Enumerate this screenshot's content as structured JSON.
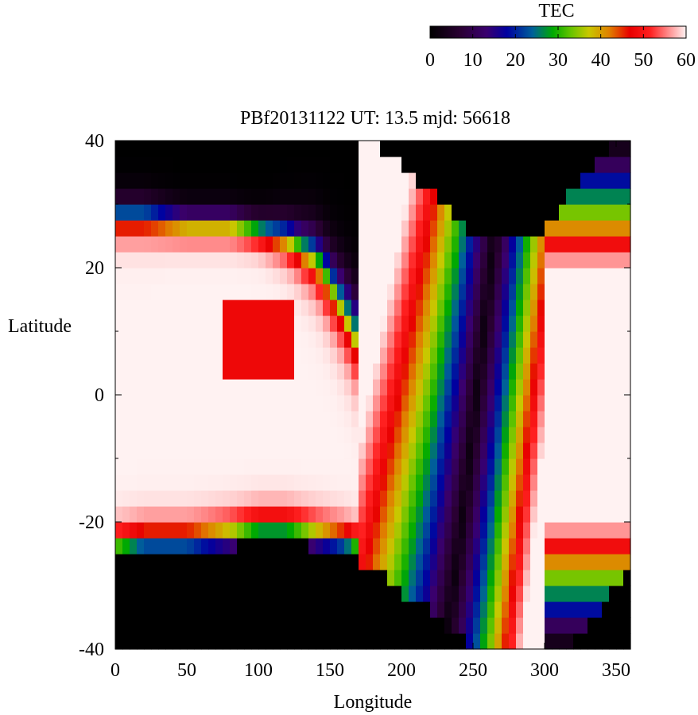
{
  "chart_data": {
    "type": "heatmap",
    "title": "PBf20131122  UT: 13.5  mjd: 56618",
    "xlabel": "Longitude",
    "ylabel": "Latitude",
    "xlim": [
      0,
      360
    ],
    "ylim": [
      -40,
      40
    ],
    "x_ticks": [
      "0",
      "50",
      "100",
      "150",
      "200",
      "250",
      "300",
      "350"
    ],
    "y_ticks": [
      "-40",
      "-20",
      "0",
      "20",
      "40"
    ],
    "x_tick_values": [
      0,
      50,
      100,
      150,
      200,
      250,
      300,
      350
    ],
    "y_tick_values": [
      -40,
      -20,
      0,
      20,
      40
    ],
    "colorbar": {
      "label": "TEC",
      "range": [
        0,
        60
      ],
      "ticks": [
        "0",
        "10",
        "20",
        "30",
        "40",
        "50",
        "60"
      ],
      "tick_values": [
        0,
        10,
        20,
        30,
        40,
        50,
        60
      ],
      "stops": [
        [
          0,
          "#000000"
        ],
        [
          0.12,
          "#2a0033"
        ],
        [
          0.22,
          "#3a006e"
        ],
        [
          0.3,
          "#0000a0"
        ],
        [
          0.4,
          "#00609a"
        ],
        [
          0.48,
          "#00aa00"
        ],
        [
          0.55,
          "#66c400"
        ],
        [
          0.62,
          "#c8c800"
        ],
        [
          0.7,
          "#e08000"
        ],
        [
          0.78,
          "#e80000"
        ],
        [
          0.86,
          "#ff2020"
        ],
        [
          0.93,
          "#ff8a8a"
        ],
        [
          1,
          "#fff2f2"
        ]
      ]
    },
    "cell_size": [
      5,
      2.5
    ],
    "grid_mode": "profile-driven field",
    "profile": {
      "lon_nodes": [
        0,
        20,
        50,
        80,
        100,
        120,
        140,
        160,
        180,
        200,
        220,
        240,
        260,
        280,
        300,
        320,
        340,
        360
      ],
      "north_edge": [
        40,
        40,
        40,
        40,
        40,
        40,
        40,
        40,
        40,
        36,
        32,
        27,
        24,
        24,
        26,
        32,
        38,
        40
      ],
      "south_edge": [
        -26,
        -25,
        -25,
        -24,
        -23,
        -23,
        -24,
        -25,
        -27,
        -31,
        -34,
        -38,
        -40,
        -40,
        -40,
        -39,
        -33,
        -27
      ],
      "gradient_center": [
        28,
        28,
        27,
        27,
        26,
        25,
        22,
        14,
        4,
        -6,
        -14,
        -16,
        -10,
        0,
        10,
        20,
        28,
        30
      ],
      "gradient_width": [
        6,
        6,
        5,
        5,
        5,
        7,
        10,
        12,
        14,
        16,
        18,
        16,
        14,
        12,
        10,
        8,
        6,
        6
      ],
      "core_max": 60,
      "trough_min": 2
    }
  }
}
